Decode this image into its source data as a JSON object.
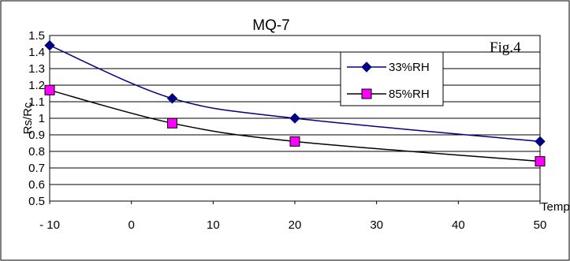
{
  "chart_data": {
    "type": "line",
    "title": "MQ-7",
    "annotation": "Fig.4",
    "xlabel": "Temp",
    "ylabel": "Rs/Rc",
    "x": [
      -10,
      5,
      20,
      50
    ],
    "xticks": [
      -10,
      0,
      10,
      20,
      30,
      40,
      50
    ],
    "xtick_labels": [
      "- 10",
      "0",
      "10",
      "20",
      "30",
      "40",
      "50"
    ],
    "xlim": [
      -10,
      50
    ],
    "ylim": [
      0.5,
      1.5
    ],
    "yticks": [
      0.5,
      0.6,
      0.7,
      0.8,
      0.9,
      1.0,
      1.1,
      1.2,
      1.3,
      1.4,
      1.5
    ],
    "ytick_labels": [
      "0.5",
      "0.6",
      "0.7",
      "0.8",
      "0.9",
      "1",
      "1.1",
      "1.2",
      "1.3",
      "1.4",
      "1.5"
    ],
    "grid": true,
    "legend_position": "top-right",
    "series": [
      {
        "name": "33%RH",
        "marker": "diamond",
        "color": "#000080",
        "marker_fill": "#000080",
        "values": [
          1.44,
          1.12,
          1.0,
          0.86
        ]
      },
      {
        "name": "85%RH",
        "marker": "square",
        "color": "#000000",
        "marker_fill": "#ff00ff",
        "values": [
          1.17,
          0.97,
          0.86,
          0.74
        ]
      }
    ]
  }
}
